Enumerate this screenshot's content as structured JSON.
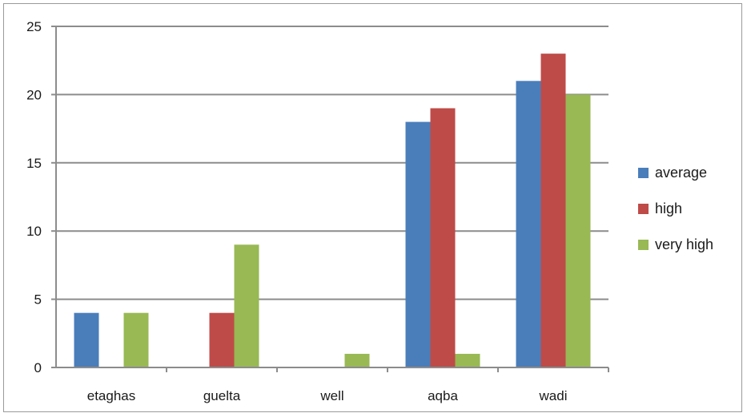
{
  "chart_data": {
    "type": "bar",
    "categories": [
      "etaghas",
      "guelta",
      "well",
      "aqba",
      "wadi"
    ],
    "series": [
      {
        "name": "average",
        "color": "#4a7ebb",
        "values": [
          4,
          0,
          0,
          18,
          21
        ]
      },
      {
        "name": "high",
        "color": "#be4b48",
        "values": [
          0,
          4,
          0,
          19,
          23
        ]
      },
      {
        "name": "very high",
        "color": "#98b954",
        "values": [
          4,
          9,
          1,
          1,
          20
        ]
      }
    ],
    "ylim": [
      0,
      25
    ],
    "yticks": [
      0,
      5,
      10,
      15,
      20,
      25
    ],
    "grid": true,
    "legend": "right",
    "title": "",
    "xlabel": "",
    "ylabel": ""
  }
}
